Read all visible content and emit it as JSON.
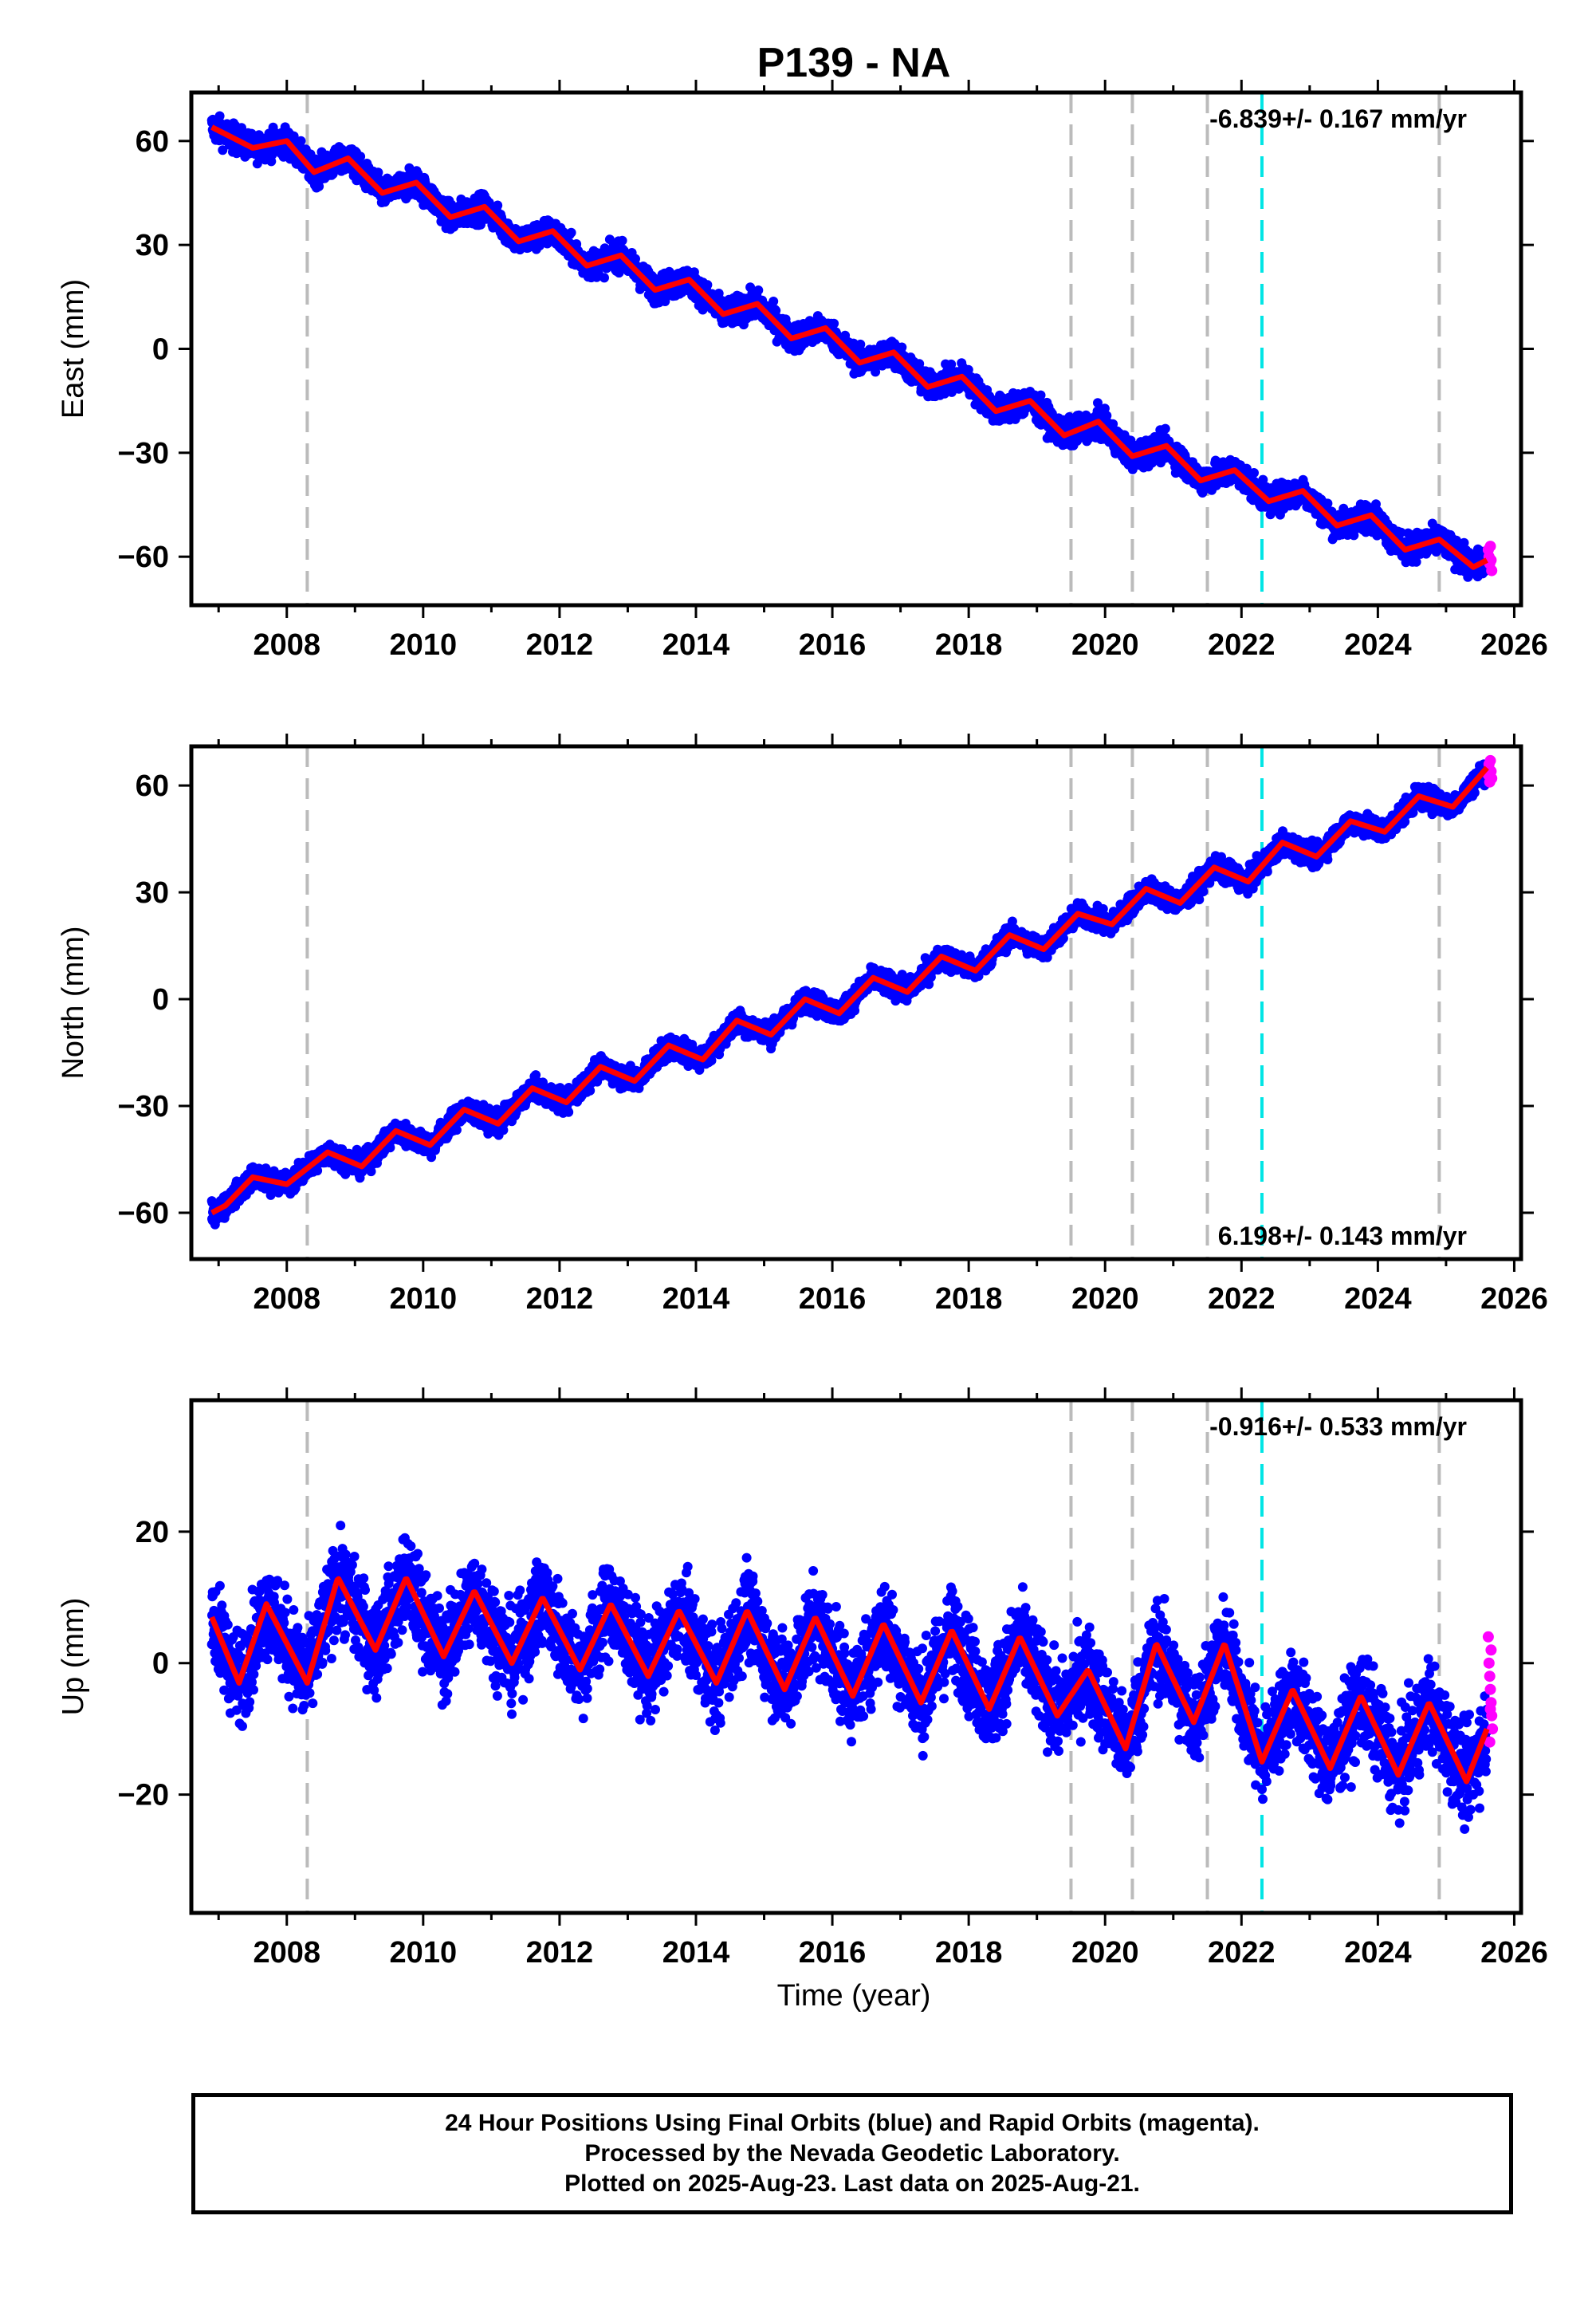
{
  "chart_data": {
    "type": "scatter",
    "title": "P139 - NA",
    "xlabel": "Time (year)",
    "xlim": [
      2006.6,
      2026.1
    ],
    "x_ticks": [
      "2008",
      "2010",
      "2012",
      "2014",
      "2016",
      "2018",
      "2020",
      "2022",
      "2024",
      "2026"
    ],
    "event_lines": [
      {
        "x": 2008.3,
        "color": "#bbbbbb"
      },
      {
        "x": 2019.5,
        "color": "#bbbbbb"
      },
      {
        "x": 2020.4,
        "color": "#bbbbbb"
      },
      {
        "x": 2021.5,
        "color": "#bbbbbb"
      },
      {
        "x": 2022.3,
        "color": "#00e5e5"
      },
      {
        "x": 2024.9,
        "color": "#bbbbbb"
      }
    ],
    "colors": {
      "final": "#0000ff",
      "rapid": "#ff00ff",
      "model": "#ff0000"
    },
    "panels": [
      {
        "name": "East",
        "ylabel": "East (mm)",
        "ylim": [
          -74,
          74
        ],
        "y_ticks": [
          60,
          30,
          0,
          -30,
          -60
        ],
        "y_tick_labels": [
          "60",
          "30",
          "0",
          "−30",
          "−60"
        ],
        "rate": "-6.839+/- 0.167 mm/yr",
        "rate_position": "top-right",
        "model": [
          [
            2006.9,
            64
          ],
          [
            2007.5,
            58
          ],
          [
            2008.0,
            60
          ],
          [
            2008.4,
            51
          ],
          [
            2008.9,
            55
          ],
          [
            2009.4,
            45
          ],
          [
            2009.9,
            48
          ],
          [
            2010.4,
            38
          ],
          [
            2010.9,
            41
          ],
          [
            2011.4,
            31
          ],
          [
            2011.9,
            34
          ],
          [
            2012.4,
            24
          ],
          [
            2012.9,
            27
          ],
          [
            2013.4,
            17
          ],
          [
            2013.9,
            20
          ],
          [
            2014.4,
            10
          ],
          [
            2014.9,
            13
          ],
          [
            2015.4,
            3
          ],
          [
            2015.9,
            6
          ],
          [
            2016.4,
            -4
          ],
          [
            2016.9,
            -1
          ],
          [
            2017.4,
            -11
          ],
          [
            2017.9,
            -8
          ],
          [
            2018.4,
            -18
          ],
          [
            2018.9,
            -15
          ],
          [
            2019.4,
            -25
          ],
          [
            2019.9,
            -21
          ],
          [
            2020.4,
            -31
          ],
          [
            2020.9,
            -28
          ],
          [
            2021.4,
            -38
          ],
          [
            2021.9,
            -35
          ],
          [
            2022.4,
            -44
          ],
          [
            2022.9,
            -41
          ],
          [
            2023.4,
            -51
          ],
          [
            2023.9,
            -48
          ],
          [
            2024.4,
            -58
          ],
          [
            2024.9,
            -55
          ],
          [
            2025.4,
            -63
          ],
          [
            2025.6,
            -61
          ]
        ],
        "scatter": 5,
        "rapid": [
          [
            2025.62,
            -58
          ],
          [
            2025.63,
            -60
          ],
          [
            2025.64,
            -62
          ],
          [
            2025.65,
            -57
          ],
          [
            2025.66,
            -61
          ],
          [
            2025.67,
            -64
          ]
        ]
      },
      {
        "name": "North",
        "ylabel": "North (mm)",
        "ylim": [
          -73,
          71
        ],
        "y_ticks": [
          60,
          30,
          0,
          -30,
          -60
        ],
        "y_tick_labels": [
          "60",
          "30",
          "0",
          "−30",
          "−60"
        ],
        "rate": "6.198+/- 0.143 mm/yr",
        "rate_position": "bottom-right",
        "model": [
          [
            2006.9,
            -60
          ],
          [
            2007.1,
            -58
          ],
          [
            2007.5,
            -50
          ],
          [
            2008.0,
            -52
          ],
          [
            2008.6,
            -43
          ],
          [
            2009.1,
            -47
          ],
          [
            2009.6,
            -37
          ],
          [
            2010.1,
            -41
          ],
          [
            2010.6,
            -31
          ],
          [
            2011.1,
            -35
          ],
          [
            2011.6,
            -25
          ],
          [
            2012.1,
            -29
          ],
          [
            2012.6,
            -19
          ],
          [
            2013.1,
            -23
          ],
          [
            2013.6,
            -13
          ],
          [
            2014.1,
            -17
          ],
          [
            2014.6,
            -6
          ],
          [
            2015.1,
            -10
          ],
          [
            2015.6,
            0
          ],
          [
            2016.1,
            -4
          ],
          [
            2016.6,
            6
          ],
          [
            2017.1,
            2
          ],
          [
            2017.6,
            12
          ],
          [
            2018.1,
            8
          ],
          [
            2018.6,
            18
          ],
          [
            2019.1,
            14
          ],
          [
            2019.6,
            24
          ],
          [
            2020.1,
            21
          ],
          [
            2020.6,
            31
          ],
          [
            2021.1,
            27
          ],
          [
            2021.6,
            37
          ],
          [
            2022.1,
            33
          ],
          [
            2022.6,
            44
          ],
          [
            2023.1,
            40
          ],
          [
            2023.6,
            50
          ],
          [
            2024.1,
            47
          ],
          [
            2024.6,
            57
          ],
          [
            2025.1,
            54
          ],
          [
            2025.6,
            65
          ]
        ],
        "scatter": 4,
        "rapid": [
          [
            2025.62,
            63
          ],
          [
            2025.63,
            66
          ],
          [
            2025.64,
            61
          ],
          [
            2025.65,
            67
          ],
          [
            2025.66,
            64
          ],
          [
            2025.67,
            62
          ]
        ]
      },
      {
        "name": "Up",
        "ylabel": "Up (mm)",
        "ylim": [
          -38,
          40
        ],
        "y_ticks": [
          20,
          0,
          -20
        ],
        "y_tick_labels": [
          "20",
          "0",
          "−20"
        ],
        "rate": "-0.916+/- 0.533 mm/yr",
        "rate_position": "top-right",
        "model": [
          [
            2006.9,
            7
          ],
          [
            2007.3,
            -3
          ],
          [
            2007.7,
            9
          ],
          [
            2008.3,
            -3
          ],
          [
            2008.75,
            13
          ],
          [
            2009.3,
            2
          ],
          [
            2009.75,
            13
          ],
          [
            2010.3,
            1
          ],
          [
            2010.75,
            11
          ],
          [
            2011.3,
            0
          ],
          [
            2011.75,
            10
          ],
          [
            2012.3,
            -1
          ],
          [
            2012.75,
            9
          ],
          [
            2013.3,
            -2
          ],
          [
            2013.75,
            8
          ],
          [
            2014.3,
            -3
          ],
          [
            2014.75,
            8
          ],
          [
            2015.3,
            -4
          ],
          [
            2015.75,
            7
          ],
          [
            2016.3,
            -5
          ],
          [
            2016.75,
            6
          ],
          [
            2017.3,
            -6
          ],
          [
            2017.75,
            5
          ],
          [
            2018.3,
            -7
          ],
          [
            2018.75,
            4
          ],
          [
            2019.3,
            -8
          ],
          [
            2019.75,
            -1
          ],
          [
            2020.3,
            -13
          ],
          [
            2020.75,
            3
          ],
          [
            2021.3,
            -9
          ],
          [
            2021.75,
            3
          ],
          [
            2022.3,
            -15
          ],
          [
            2022.75,
            -4
          ],
          [
            2023.3,
            -16
          ],
          [
            2023.75,
            -5
          ],
          [
            2024.3,
            -17
          ],
          [
            2024.75,
            -6
          ],
          [
            2025.3,
            -18
          ],
          [
            2025.6,
            -10
          ]
        ],
        "scatter": 9,
        "rapid": [
          [
            2025.62,
            4
          ],
          [
            2025.63,
            0
          ],
          [
            2025.64,
            -2
          ],
          [
            2025.65,
            -4
          ],
          [
            2025.66,
            -6
          ],
          [
            2025.67,
            -8
          ],
          [
            2025.68,
            -10
          ],
          [
            2025.66,
            2
          ],
          [
            2025.64,
            -12
          ],
          [
            2025.65,
            -7
          ]
        ]
      }
    ]
  },
  "footer": {
    "line1": "24 Hour Positions Using Final Orbits (blue) and Rapid Orbits (magenta).",
    "line2": "Processed by the Nevada Geodetic Laboratory.",
    "line3": "Plotted on 2025-Aug-23. Last data on 2025-Aug-21."
  }
}
